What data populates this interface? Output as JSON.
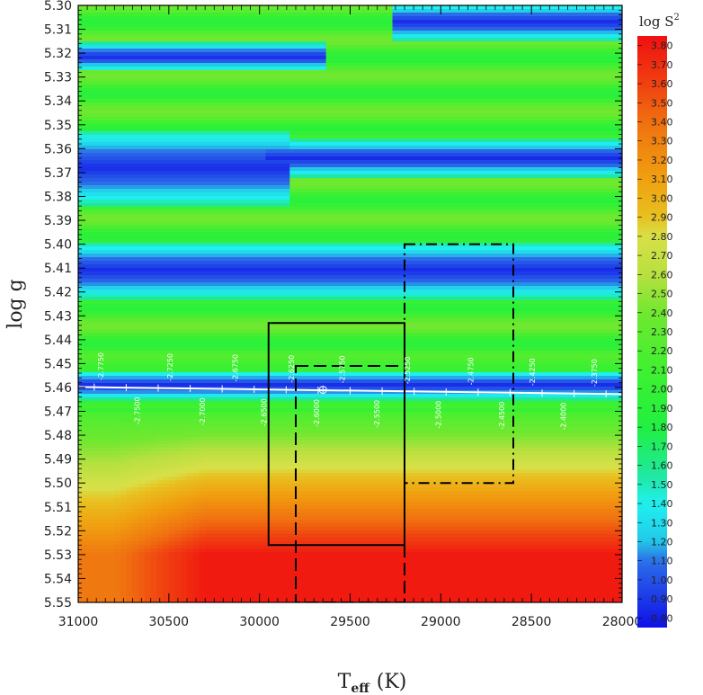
{
  "chart_data": {
    "type": "heatmap",
    "title": "",
    "xlabel": {
      "main": "T",
      "sub": "eff",
      "unit": "(K)"
    },
    "ylabel": "log g",
    "colorbar_label": {
      "main": "log S",
      "sup": "2"
    },
    "xlim": [
      31000,
      28000
    ],
    "ylim": [
      5.3,
      5.55
    ],
    "x_ticks": [
      "31000",
      "30500",
      "30000",
      "29500",
      "29000",
      "28500",
      "28000"
    ],
    "x_tick_values": [
      31000,
      30500,
      30000,
      29500,
      29000,
      28500,
      28000
    ],
    "y_ticks": [
      "5.30",
      "5.31",
      "5.32",
      "5.33",
      "5.34",
      "5.35",
      "5.36",
      "5.37",
      "5.38",
      "5.39",
      "5.40",
      "5.41",
      "5.42",
      "5.43",
      "5.44",
      "5.45",
      "5.46",
      "5.47",
      "5.48",
      "5.49",
      "5.50",
      "5.51",
      "5.52",
      "5.53",
      "5.54",
      "5.55"
    ],
    "colorbar_ticks": [
      "3.80",
      "3.70",
      "3.60",
      "3.50",
      "3.40",
      "3.30",
      "3.20",
      "3.10",
      "3.00",
      "2.90",
      "2.80",
      "2.70",
      "2.60",
      "2.50",
      "2.40",
      "2.30",
      "2.20",
      "2.10",
      "2.00",
      "1.90",
      "1.80",
      "1.70",
      "1.60",
      "1.50",
      "1.40",
      "1.30",
      "1.20",
      "1.10",
      "1.00",
      "0.90",
      "0.80"
    ],
    "colorbar_range": [
      0.75,
      3.85
    ],
    "colorbar_stops": [
      {
        "v": 0.75,
        "color": "#1010e8"
      },
      {
        "v": 1.1,
        "color": "#2c6ee8"
      },
      {
        "v": 1.2,
        "color": "#22c8e8"
      },
      {
        "v": 1.4,
        "color": "#20f0f0"
      },
      {
        "v": 1.55,
        "color": "#20e8a0"
      },
      {
        "v": 1.8,
        "color": "#20f040"
      },
      {
        "v": 2.1,
        "color": "#40f030"
      },
      {
        "v": 2.4,
        "color": "#70e830"
      },
      {
        "v": 2.6,
        "color": "#b8e040"
      },
      {
        "v": 2.8,
        "color": "#d8e048"
      },
      {
        "v": 2.9,
        "color": "#e8c020"
      },
      {
        "v": 3.1,
        "color": "#f0a010"
      },
      {
        "v": 3.4,
        "color": "#f07010"
      },
      {
        "v": 3.6,
        "color": "#f04010"
      },
      {
        "v": 3.85,
        "color": "#f01010"
      }
    ],
    "low_bands": [
      {
        "y": 5.307,
        "half_width": 0.004,
        "x_from": 29200,
        "x_to": 28000
      },
      {
        "y": 5.3215,
        "half_width": 0.003,
        "x_from": 31000,
        "x_to": 29700
      },
      {
        "y": 5.368,
        "half_width": 0.008,
        "x_from": 31000,
        "x_to": 29900
      },
      {
        "y": 5.364,
        "half_width": 0.004,
        "x_from": 29900,
        "x_to": 28000
      },
      {
        "y": 5.411,
        "half_width": 0.006,
        "x_from": 31000,
        "x_to": 28000
      },
      {
        "y": 5.459,
        "half_width": 0.003,
        "x_from": 31000,
        "x_to": 28000
      }
    ],
    "series": [
      {
        "style": "white-line",
        "x": [
          31000,
          28000
        ],
        "y": [
          5.4598,
          5.4628
        ]
      },
      {
        "style": "solid-rectangle",
        "x": [
          29950,
          29200
        ],
        "y": [
          5.433,
          5.526
        ]
      },
      {
        "style": "dashed-rectangle",
        "x": [
          29800,
          29200
        ],
        "y": [
          5.451,
          5.55
        ]
      },
      {
        "style": "dashdot-rectangle",
        "x": [
          29200,
          28600
        ],
        "y": [
          5.4,
          5.5
        ]
      }
    ],
    "marker": {
      "x": 29650,
      "y": 5.461,
      "symbol": "circle-plus"
    },
    "line_labels_above": [
      {
        "x": 30860,
        "text": "-2.7750"
      },
      {
        "x": 30480,
        "text": "-2.7250"
      },
      {
        "x": 30120,
        "text": "-2.6750"
      },
      {
        "x": 29810,
        "text": "-2.6250"
      },
      {
        "x": 29530,
        "text": "-2.5750"
      },
      {
        "x": 29170,
        "text": "-2.5250"
      },
      {
        "x": 28820,
        "text": "-2.4750"
      },
      {
        "x": 28480,
        "text": "-2.4250"
      },
      {
        "x": 28140,
        "text": "-2.3750"
      }
    ],
    "line_labels_below": [
      {
        "x": 30660,
        "text": "-2.7500"
      },
      {
        "x": 30300,
        "text": "-2.7000"
      },
      {
        "x": 29960,
        "text": "-2.6500"
      },
      {
        "x": 29670,
        "text": "-2.6000"
      },
      {
        "x": 29340,
        "text": "-2.5500"
      },
      {
        "x": 29000,
        "text": "-2.5000"
      },
      {
        "x": 28650,
        "text": "-2.4500"
      },
      {
        "x": 28310,
        "text": "-2.4000"
      }
    ]
  }
}
